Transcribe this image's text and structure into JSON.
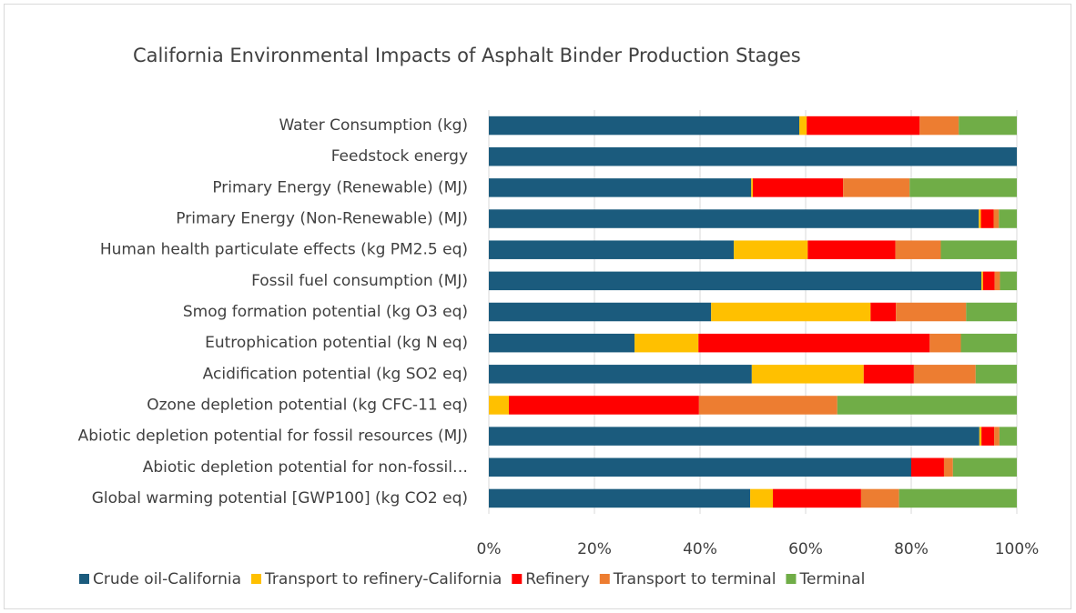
{
  "chart_data": {
    "type": "stacked_bar_horizontal",
    "title": "California Environmental Impacts of Asphalt Binder Production Stages",
    "categories": [
      "Water Consumption (kg)",
      "Feedstock energy",
      "Primary Energy (Renewable) (MJ)",
      "Primary Energy (Non-Renewable) (MJ)",
      "Human health particulate effects (kg PM2.5 eq)",
      "Fossil fuel consumption (MJ)",
      "Smog formation potential (kg O3 eq)",
      "Eutrophication potential (kg N eq)",
      "Acidification potential (kg SO2 eq)",
      "Ozone depletion potential (kg CFC-11 eq)",
      "Abiotic depletion potential for fossil resources (MJ)",
      "Abiotic depletion potential for non-fossil…",
      "Global warming potential [GWP100] (kg CO2 eq)"
    ],
    "series": [
      {
        "name": "Crude oil-California",
        "color": "#1b5b7d",
        "values": [
          58.8,
          100,
          49.7,
          92.8,
          46.4,
          93.3,
          42.1,
          27.6,
          49.8,
          0,
          92.9,
          80.0,
          49.5
        ]
      },
      {
        "name": "Transport to refinery-California",
        "color": "#ffc000",
        "values": [
          1.4,
          0,
          0.3,
          0.4,
          14.0,
          0.3,
          30.2,
          12.1,
          21.2,
          3.8,
          0.4,
          0,
          4.3
        ]
      },
      {
        "name": "Refinery",
        "color": "#ff0000",
        "values": [
          21.4,
          0,
          17.1,
          2.4,
          16.6,
          2.2,
          4.8,
          43.8,
          9.5,
          36.0,
          2.4,
          6.2,
          16.7
        ]
      },
      {
        "name": "Transport to terminal",
        "color": "#ed7d31",
        "values": [
          7.4,
          0,
          12.6,
          1.0,
          8.6,
          1.0,
          13.3,
          5.9,
          11.7,
          26.2,
          1.0,
          1.7,
          7.2
        ]
      },
      {
        "name": "Terminal",
        "color": "#70ad47",
        "values": [
          11.0,
          0,
          20.3,
          3.4,
          14.4,
          3.2,
          9.6,
          10.6,
          7.8,
          34.0,
          3.3,
          12.1,
          22.3
        ]
      }
    ],
    "xlim": [
      0,
      100
    ],
    "xticks": [
      {
        "value": 0,
        "label": "0%"
      },
      {
        "value": 20,
        "label": "20%"
      },
      {
        "value": 40,
        "label": "40%"
      },
      {
        "value": 60,
        "label": "60%"
      },
      {
        "value": 80,
        "label": "80%"
      },
      {
        "value": 100,
        "label": "100%"
      }
    ],
    "grid": true,
    "legend": "bottom"
  }
}
